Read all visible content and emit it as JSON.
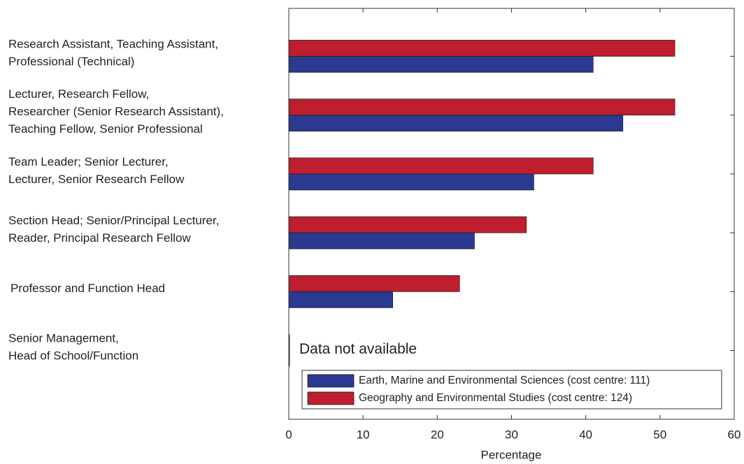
{
  "chart_data": {
    "type": "barh",
    "categories": [
      [
        "Research Assistant, Teaching Assistant,",
        "Professional (Technical)"
      ],
      [
        "Lecturer, Research Fellow,",
        "Researcher (Senior Research Assistant),",
        "Teaching Fellow, Senior Professional"
      ],
      [
        "Team Leader; Senior Lecturer,",
        "Lecturer, Senior Research Fellow"
      ],
      [
        "Section Head; Senior/Principal Lecturer,",
        "Reader, Principal Research Fellow"
      ],
      [
        "Professor and Function Head"
      ],
      [
        "Senior Management,",
        "Head of School/Function"
      ]
    ],
    "series": [
      {
        "name": "Geography and Environmental Studies (cost centre: 124)",
        "color": "#be1e2d",
        "values": [
          52,
          52,
          41,
          32,
          23,
          null
        ]
      },
      {
        "name": "Earth, Marine and Environmental Sciences (cost centre: 111)",
        "color": "#2b3990",
        "values": [
          41,
          45,
          33,
          25,
          14,
          null
        ]
      }
    ],
    "xlabel": "Percentage",
    "xlim": [
      0,
      60
    ],
    "xticks": [
      0,
      10,
      20,
      30,
      40,
      50,
      60
    ],
    "annotation": "Data not available",
    "legend": "lower right"
  }
}
